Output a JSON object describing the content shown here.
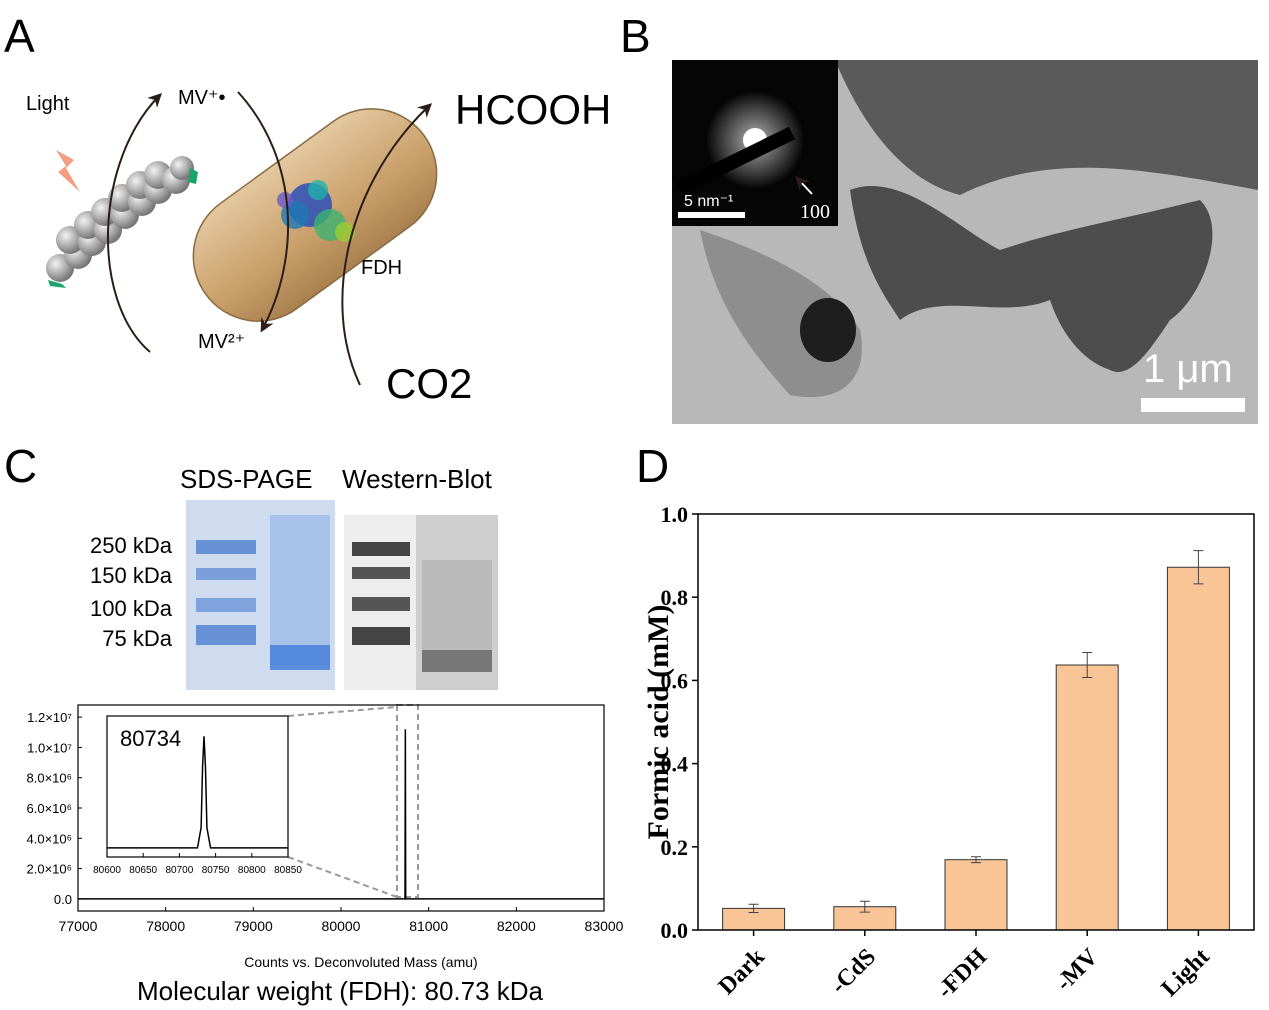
{
  "panels": [
    "A",
    "B",
    "C",
    "D"
  ],
  "scheme": {
    "light": "Light",
    "mv_radical": "MV⁺•",
    "mv_oxidized": "MV²⁺",
    "hcooh": "HCOOH",
    "co2": "CO2",
    "fdh": "FDH"
  },
  "tem": {
    "diffraction_scale": "5 nm⁻¹",
    "diffraction_index": "100",
    "scale": "1 μm"
  },
  "gel": {
    "titles": [
      "SDS-PAGE",
      "Western-Blot"
    ],
    "markers": [
      "250 kDa",
      "150 kDa",
      "100 kDa",
      "75 kDa"
    ]
  },
  "chart_data": [
    {
      "type": "line",
      "xlabel": "Counts vs. Deconvoluted Mass (amu)",
      "caption": "Molecular weight (FDH): 80.73 kDa",
      "xlim": [
        77000,
        83000
      ],
      "xticks": [
        77000,
        78000,
        79000,
        80000,
        81000,
        82000,
        83000
      ],
      "ylim": [
        -800000,
        12800000
      ],
      "yticks": [
        {
          "value": 0,
          "label": "0.0"
        },
        {
          "value": 2000000,
          "label": "2.0×10⁶"
        },
        {
          "value": 4000000,
          "label": "4.0×10⁶"
        },
        {
          "value": 6000000,
          "label": "6.0×10⁶"
        },
        {
          "value": 8000000,
          "label": "8.0×10⁶"
        },
        {
          "value": 10000000,
          "label": "1.0×10⁷"
        },
        {
          "value": 12000000,
          "label": "1.2×10⁷"
        }
      ],
      "x": [
        77000,
        80730,
        80734,
        80738,
        83000
      ],
      "series": [
        {
          "color": "#000000",
          "values": [
            0,
            0,
            11200000,
            0,
            0
          ]
        }
      ]
    },
    {
      "type": "line",
      "annotation": "80734",
      "xlim": [
        80600,
        80850
      ],
      "xticks": [
        80600,
        80650,
        80700,
        80750,
        80800,
        80850
      ],
      "ylim": [
        -900000,
        13000000
      ],
      "x": [
        80600,
        80725,
        80730,
        80732,
        80734,
        80736,
        80738,
        80743,
        80850
      ],
      "series": [
        {
          "color": "#000000",
          "values": [
            0,
            0,
            2000000,
            8000000,
            11000000,
            8000000,
            2000000,
            0,
            0
          ]
        }
      ]
    },
    {
      "type": "bar",
      "ylabel": "Formic acid (mM)",
      "color": "#f9c596",
      "categories": [
        "Dark",
        "-CdS",
        "-FDH",
        "-MV",
        "Light"
      ],
      "values": [
        0.052,
        0.056,
        0.169,
        0.637,
        0.872
      ],
      "errors": [
        0.01,
        0.013,
        0.007,
        0.03,
        0.04
      ],
      "ylim": [
        0,
        1.0
      ],
      "yticks": [
        {
          "value": 0,
          "label": "0.0"
        },
        {
          "value": 0.2,
          "label": "0.2"
        },
        {
          "value": 0.4,
          "label": "0.4"
        },
        {
          "value": 0.6,
          "label": "0.6"
        },
        {
          "value": 0.8,
          "label": "0.8"
        },
        {
          "value": 1.0,
          "label": "1.0"
        }
      ]
    }
  ]
}
